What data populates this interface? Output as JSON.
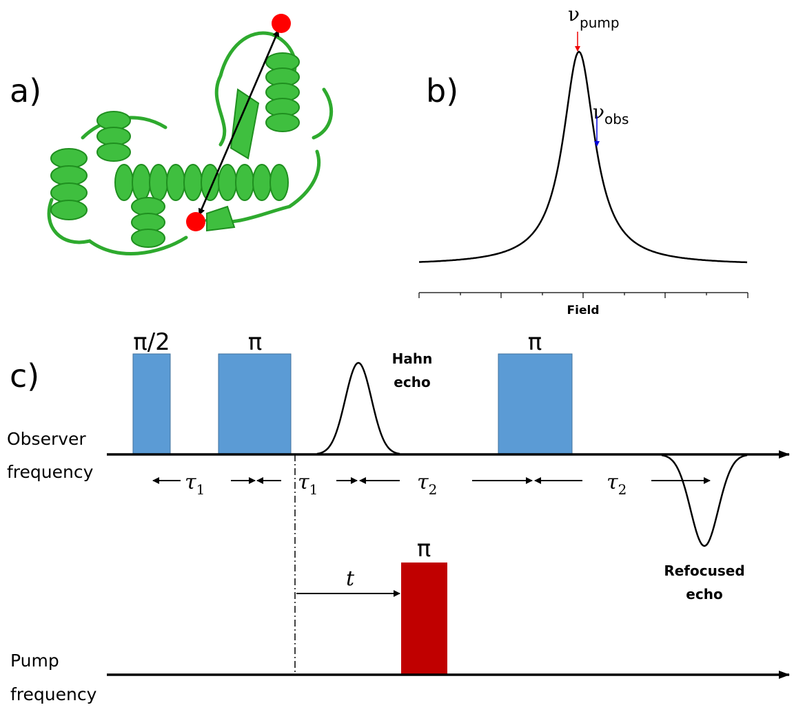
{
  "panels": {
    "a": {
      "label": "a)"
    },
    "b": {
      "label": "b)",
      "pump_marker": {
        "symbol": "ν",
        "subscript": "pump"
      },
      "obs_marker": {
        "symbol": "ν",
        "subscript": "obs"
      },
      "axis_label": "Field"
    },
    "c": {
      "label": "c)",
      "observer_channel": [
        "Observer",
        "frequency"
      ],
      "pump_channel": [
        "Pump",
        "frequency"
      ],
      "pulses": [
        {
          "label": "π/2"
        },
        {
          "label": "π"
        },
        {
          "label": "π"
        },
        {
          "label": "π"
        }
      ],
      "echoes": [
        [
          "Hahn",
          "echo"
        ],
        [
          "Refocused",
          "echo"
        ]
      ],
      "delays": [
        {
          "symbol": "τ",
          "subscript": "1"
        },
        {
          "symbol": "τ",
          "subscript": "1"
        },
        {
          "symbol": "τ",
          "subscript": "2"
        },
        {
          "symbol": "τ",
          "subscript": "2"
        }
      ],
      "pump_delay": "t"
    }
  }
}
